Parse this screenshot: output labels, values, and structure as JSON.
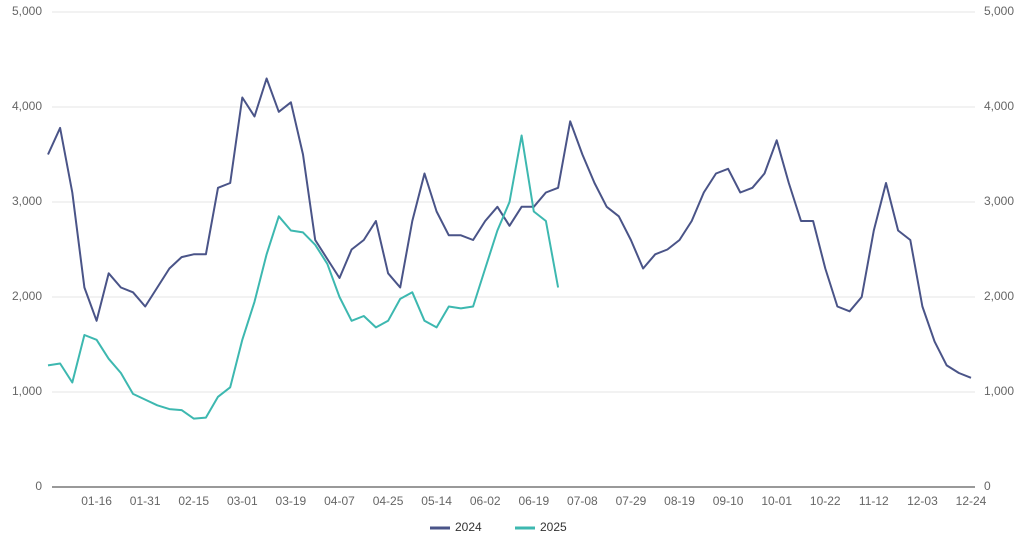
{
  "chart_data": {
    "type": "line",
    "categories": [
      null,
      null,
      null,
      null,
      "01-16",
      null,
      null,
      null,
      "01-31",
      null,
      null,
      null,
      "02-15",
      null,
      null,
      null,
      "03-01",
      null,
      null,
      null,
      "03-19",
      null,
      null,
      null,
      "04-07",
      null,
      null,
      null,
      "04-25",
      null,
      null,
      null,
      "05-14",
      null,
      null,
      null,
      "06-02",
      null,
      null,
      null,
      "06-19",
      null,
      null,
      null,
      "07-08",
      null,
      null,
      null,
      "07-29",
      null,
      null,
      null,
      "08-19",
      null,
      null,
      null,
      "09-10",
      null,
      null,
      null,
      "10-01",
      null,
      null,
      null,
      "10-22",
      null,
      null,
      null,
      "11-12",
      null,
      null,
      null,
      "12-03",
      null,
      null,
      null,
      "12-24"
    ],
    "series": [
      {
        "name": "2024",
        "color": "#4a5488",
        "values": [
          3500,
          3780,
          3100,
          2100,
          1750,
          2250,
          2100,
          2050,
          1900,
          2100,
          2300,
          2420,
          2450,
          2450,
          3150,
          3200,
          4100,
          3900,
          4300,
          3950,
          4050,
          3500,
          2600,
          2400,
          2200,
          2500,
          2600,
          2800,
          2250,
          2100,
          2800,
          3300,
          2900,
          2650,
          2650,
          2600,
          2800,
          2950,
          2750,
          2950,
          2950,
          3100,
          3150,
          3850,
          3500,
          3200,
          2950,
          2850,
          2600,
          2300,
          2450,
          2500,
          2600,
          2800,
          3100,
          3300,
          3350,
          3100,
          3150,
          3300,
          3650,
          3200,
          2800,
          2800,
          2300,
          1900,
          1850,
          2000,
          2700,
          3200,
          2700,
          2600,
          1900,
          1530,
          1280,
          1200,
          1150
        ]
      },
      {
        "name": "2025",
        "color": "#3db8b0",
        "values": [
          1280,
          1300,
          1100,
          1600,
          1550,
          1350,
          1200,
          980,
          920,
          860,
          820,
          810,
          720,
          730,
          950,
          1050,
          1550,
          1950,
          2450,
          2850,
          2700,
          2680,
          2550,
          2350,
          2000,
          1750,
          1800,
          1680,
          1750,
          1980,
          2050,
          1750,
          1680,
          1900,
          1880,
          1900,
          2300,
          2700,
          3000,
          3700,
          2900,
          2800,
          2100,
          null,
          null,
          null,
          null,
          null,
          null,
          null,
          null,
          null,
          null,
          null,
          null,
          null,
          null,
          null,
          null,
          null,
          null,
          null,
          null,
          null,
          null,
          null,
          null,
          null,
          null,
          null,
          null,
          null,
          null,
          null,
          null,
          null,
          null
        ]
      }
    ],
    "ylim": [
      0,
      5000
    ],
    "yticks": [
      0,
      {
        "value": 1000,
        "label": "1,000"
      },
      {
        "value": 2000,
        "label": "2,000"
      },
      {
        "value": 3000,
        "label": "3,000"
      },
      {
        "value": 4000,
        "label": "4,000"
      },
      {
        "value": 5000,
        "label": "5,000"
      }
    ],
    "y2lim": [
      0,
      5000
    ],
    "y2ticks": [
      0,
      {
        "value": 1000,
        "label": "1,000"
      },
      {
        "value": 2000,
        "label": "2,000"
      },
      {
        "value": 3000,
        "label": "3,000"
      },
      {
        "value": 4000,
        "label": "4,000"
      },
      {
        "value": 5000,
        "label": "5,000"
      }
    ],
    "grid": true,
    "legend": "bottom"
  }
}
